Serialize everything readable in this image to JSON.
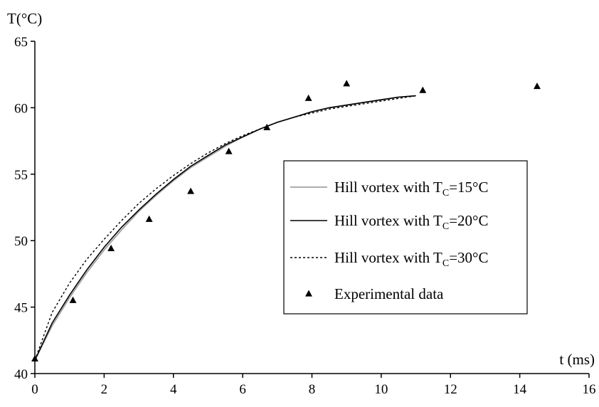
{
  "chart_data": {
    "type": "line",
    "title": "",
    "xlabel": "t (ms)",
    "ylabel": "T(°C)",
    "xlim": [
      0,
      16
    ],
    "ylim": [
      40,
      65
    ],
    "x_ticks": [
      0,
      2,
      4,
      6,
      8,
      10,
      12,
      14,
      16
    ],
    "y_ticks": [
      40,
      45,
      50,
      55,
      60,
      65
    ],
    "grid": false,
    "legend_position": "right",
    "series": [
      {
        "name": "Hill vortex with T_C=15°C",
        "name_parts": [
          "Hill vortex with T",
          "C",
          "=15°C"
        ],
        "kind": "line",
        "color": "#a0a0a0",
        "dash": "solid",
        "x": [
          0,
          0.5,
          1,
          1.5,
          2,
          2.5,
          3,
          3.5,
          4,
          4.5,
          5,
          5.5,
          6,
          6.5,
          7,
          7.5,
          8,
          8.5,
          9,
          9.5,
          10,
          10.5,
          11
        ],
        "y": [
          41.0,
          43.6,
          45.7,
          47.6,
          49.3,
          50.8,
          52.2,
          53.4,
          54.5,
          55.5,
          56.3,
          57.1,
          57.8,
          58.4,
          58.9,
          59.3,
          59.7,
          60.0,
          60.2,
          60.4,
          60.6,
          60.8,
          60.9
        ]
      },
      {
        "name": "Hill vortex with T_C=20°C",
        "name_parts": [
          "Hill vortex with T",
          "C",
          "=20°C"
        ],
        "kind": "line",
        "color": "#000000",
        "dash": "solid",
        "x": [
          0,
          0.5,
          1,
          1.5,
          2,
          2.5,
          3,
          3.5,
          4,
          4.5,
          5,
          5.5,
          6,
          6.5,
          7,
          7.5,
          8,
          8.5,
          9,
          9.5,
          10,
          10.5,
          11
        ],
        "y": [
          41.0,
          43.8,
          45.9,
          47.8,
          49.5,
          51.0,
          52.3,
          53.5,
          54.6,
          55.6,
          56.4,
          57.2,
          57.8,
          58.4,
          58.9,
          59.3,
          59.7,
          60.0,
          60.2,
          60.4,
          60.6,
          60.8,
          60.9
        ]
      },
      {
        "name": "Hill vortex with T_C=30°C",
        "name_parts": [
          "Hill vortex with T",
          "C",
          "=30°C"
        ],
        "kind": "line",
        "color": "#000000",
        "dash": "dotted",
        "x": [
          0,
          0.5,
          1,
          1.5,
          2,
          2.5,
          3,
          3.5,
          4,
          4.5,
          5,
          5.5,
          6,
          6.5,
          7,
          7.5,
          8,
          8.5,
          9,
          9.5,
          10,
          10.5,
          11
        ],
        "y": [
          41.0,
          44.6,
          46.8,
          48.6,
          50.1,
          51.5,
          52.8,
          53.9,
          54.9,
          55.8,
          56.6,
          57.3,
          57.9,
          58.4,
          58.9,
          59.3,
          59.6,
          59.9,
          60.1,
          60.3,
          60.5,
          60.7,
          60.9
        ]
      },
      {
        "name": "Experimental data",
        "name_parts": [
          "Experimental data"
        ],
        "kind": "scatter",
        "marker": "triangle",
        "color": "#000000",
        "x": [
          0,
          1.1,
          2.2,
          3.3,
          4.5,
          5.6,
          6.7,
          7.9,
          9.0,
          11.2,
          14.5
        ],
        "y": [
          41.1,
          45.5,
          49.4,
          51.6,
          53.7,
          56.7,
          58.5,
          60.7,
          61.8,
          61.3,
          61.6
        ]
      }
    ]
  }
}
